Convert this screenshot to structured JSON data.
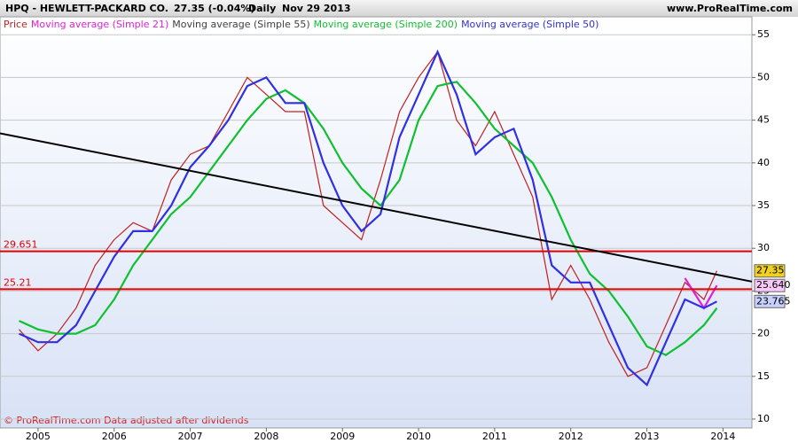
{
  "header": {
    "symbol": "HPQ - HEWLETT-PACKARD CO.",
    "quote": "27.35 (-0.04%)",
    "period": "Daily",
    "date": "Nov 29 2013",
    "site": "www.ProRealTime.com"
  },
  "footer": "© ProRealTime.com Data adjusted after dividends",
  "chart_data": {
    "type": "line",
    "x": [
      2004.75,
      2005,
      2005.25,
      2005.5,
      2005.75,
      2006,
      2006.25,
      2006.5,
      2006.75,
      2007,
      2007.25,
      2007.5,
      2007.75,
      2008,
      2008.25,
      2008.5,
      2008.75,
      2009,
      2009.25,
      2009.5,
      2009.75,
      2010,
      2010.25,
      2010.5,
      2010.75,
      2011,
      2011.25,
      2011.5,
      2011.75,
      2012,
      2012.25,
      2012.5,
      2012.75,
      2013,
      2013.25,
      2013.5,
      2013.75,
      2013.92
    ],
    "series": [
      {
        "name": "Price",
        "color": "#c02020",
        "values": [
          20.5,
          18,
          20,
          23,
          28,
          31,
          33,
          32,
          38,
          41,
          42,
          46,
          50,
          48,
          46,
          46,
          35,
          33,
          31,
          38,
          46,
          50,
          53,
          45,
          42,
          46,
          41,
          36,
          24,
          28,
          24,
          19,
          15,
          16,
          21,
          26,
          24,
          27.35
        ]
      },
      {
        "name": "Moving average (Simple 21)",
        "color": "#e020e0",
        "values": [
          null,
          null,
          null,
          null,
          null,
          null,
          null,
          null,
          null,
          null,
          null,
          null,
          null,
          null,
          null,
          null,
          null,
          null,
          null,
          null,
          null,
          null,
          null,
          null,
          null,
          null,
          null,
          null,
          null,
          null,
          null,
          null,
          null,
          null,
          null,
          26.5,
          23,
          25.64
        ]
      },
      {
        "name": "Moving average (Simple 55)",
        "color": "#404040",
        "values": [
          null,
          null,
          null,
          null,
          null,
          null,
          null,
          null,
          null,
          null,
          null,
          null,
          null,
          null,
          null,
          null,
          null,
          null,
          null,
          null,
          null,
          null,
          null,
          null,
          null,
          null,
          null,
          null,
          null,
          null,
          null,
          null,
          null,
          null,
          null,
          null,
          null,
          null
        ]
      },
      {
        "name": "Moving average (Simple 200)",
        "color": "#10c030",
        "values": [
          21.5,
          20.5,
          20,
          20,
          21,
          24,
          28,
          31,
          34,
          36,
          39,
          42,
          45,
          47.5,
          48.5,
          47,
          44,
          40,
          37,
          35,
          38,
          45,
          49,
          49.5,
          47,
          44,
          42,
          40,
          36,
          31,
          27,
          25,
          22,
          18.5,
          17.5,
          19,
          21,
          23
        ]
      },
      {
        "name": "Moving average (Simple 50)",
        "color": "#3030e0",
        "values": [
          20,
          19,
          19,
          21,
          25,
          29,
          32,
          32,
          35,
          39.5,
          42,
          45,
          49,
          50,
          47,
          47,
          40,
          35,
          32,
          34,
          43,
          48,
          53,
          48,
          41,
          43,
          44,
          38,
          28,
          26,
          26,
          21,
          16,
          14,
          19,
          24,
          23,
          23.765
        ]
      }
    ],
    "hlines": [
      {
        "value": 29.651,
        "color": "#e00000"
      },
      {
        "value": 25.21,
        "color": "#e00000"
      }
    ],
    "trendline": {
      "x": [
        2004.5,
        2014.38
      ],
      "y": [
        43.46,
        26.1
      ],
      "color": "#000000"
    },
    "last_values": [
      {
        "value": 27.35,
        "color": "#f0d020"
      },
      {
        "value": {
          "value": 25.64,
          "label": "25.640"
        },
        "color": "#f8c8f8"
      },
      {
        "value": 23.765,
        "color": "#c8d0ff"
      }
    ],
    "xlim": [
      2004.5,
      2014.38
    ],
    "xticks": [
      2005,
      2006,
      2007,
      2008,
      2009,
      2010,
      2011,
      2012,
      2013,
      2014
    ],
    "ylim": [
      8.96,
      57.1
    ],
    "yticks": [
      10,
      15,
      20,
      25,
      30,
      35,
      40,
      45,
      50,
      55
    ],
    "grid": true
  }
}
